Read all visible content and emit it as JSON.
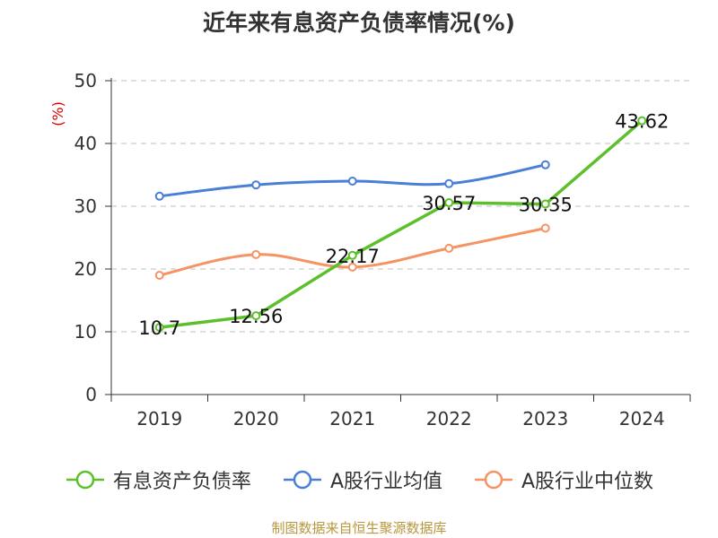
{
  "title": "近年来有息资产负债率情况(%)",
  "footer": "制图数据来自恒生聚源数据库",
  "chart_data": {
    "type": "line",
    "title": "近年来有息资产负债率情况(%)",
    "ylabel": "(%)",
    "xlabel": "",
    "categories": [
      "2019",
      "2020",
      "2021",
      "2022",
      "2023",
      "2024"
    ],
    "ylim": [
      0,
      50
    ],
    "yticks": [
      0,
      10,
      20,
      30,
      40,
      50
    ],
    "grid": true,
    "legend_position": "bottom",
    "series": [
      {
        "name": "有息资产负债率",
        "color": "#5cc02b",
        "values": [
          10.7,
          12.56,
          22.17,
          30.57,
          30.35,
          43.62
        ],
        "labels": [
          "10.7",
          "12.56",
          "22.17",
          "30.57",
          "30.35",
          "43.62"
        ]
      },
      {
        "name": "A股行业均值",
        "color": "#4a7fd6",
        "values": [
          31.6,
          33.4,
          34.0,
          33.6,
          36.6,
          null
        ]
      },
      {
        "name": "A股行业中位数",
        "color": "#f59363",
        "values": [
          19.0,
          22.3,
          20.3,
          23.3,
          26.5,
          null
        ]
      }
    ]
  }
}
